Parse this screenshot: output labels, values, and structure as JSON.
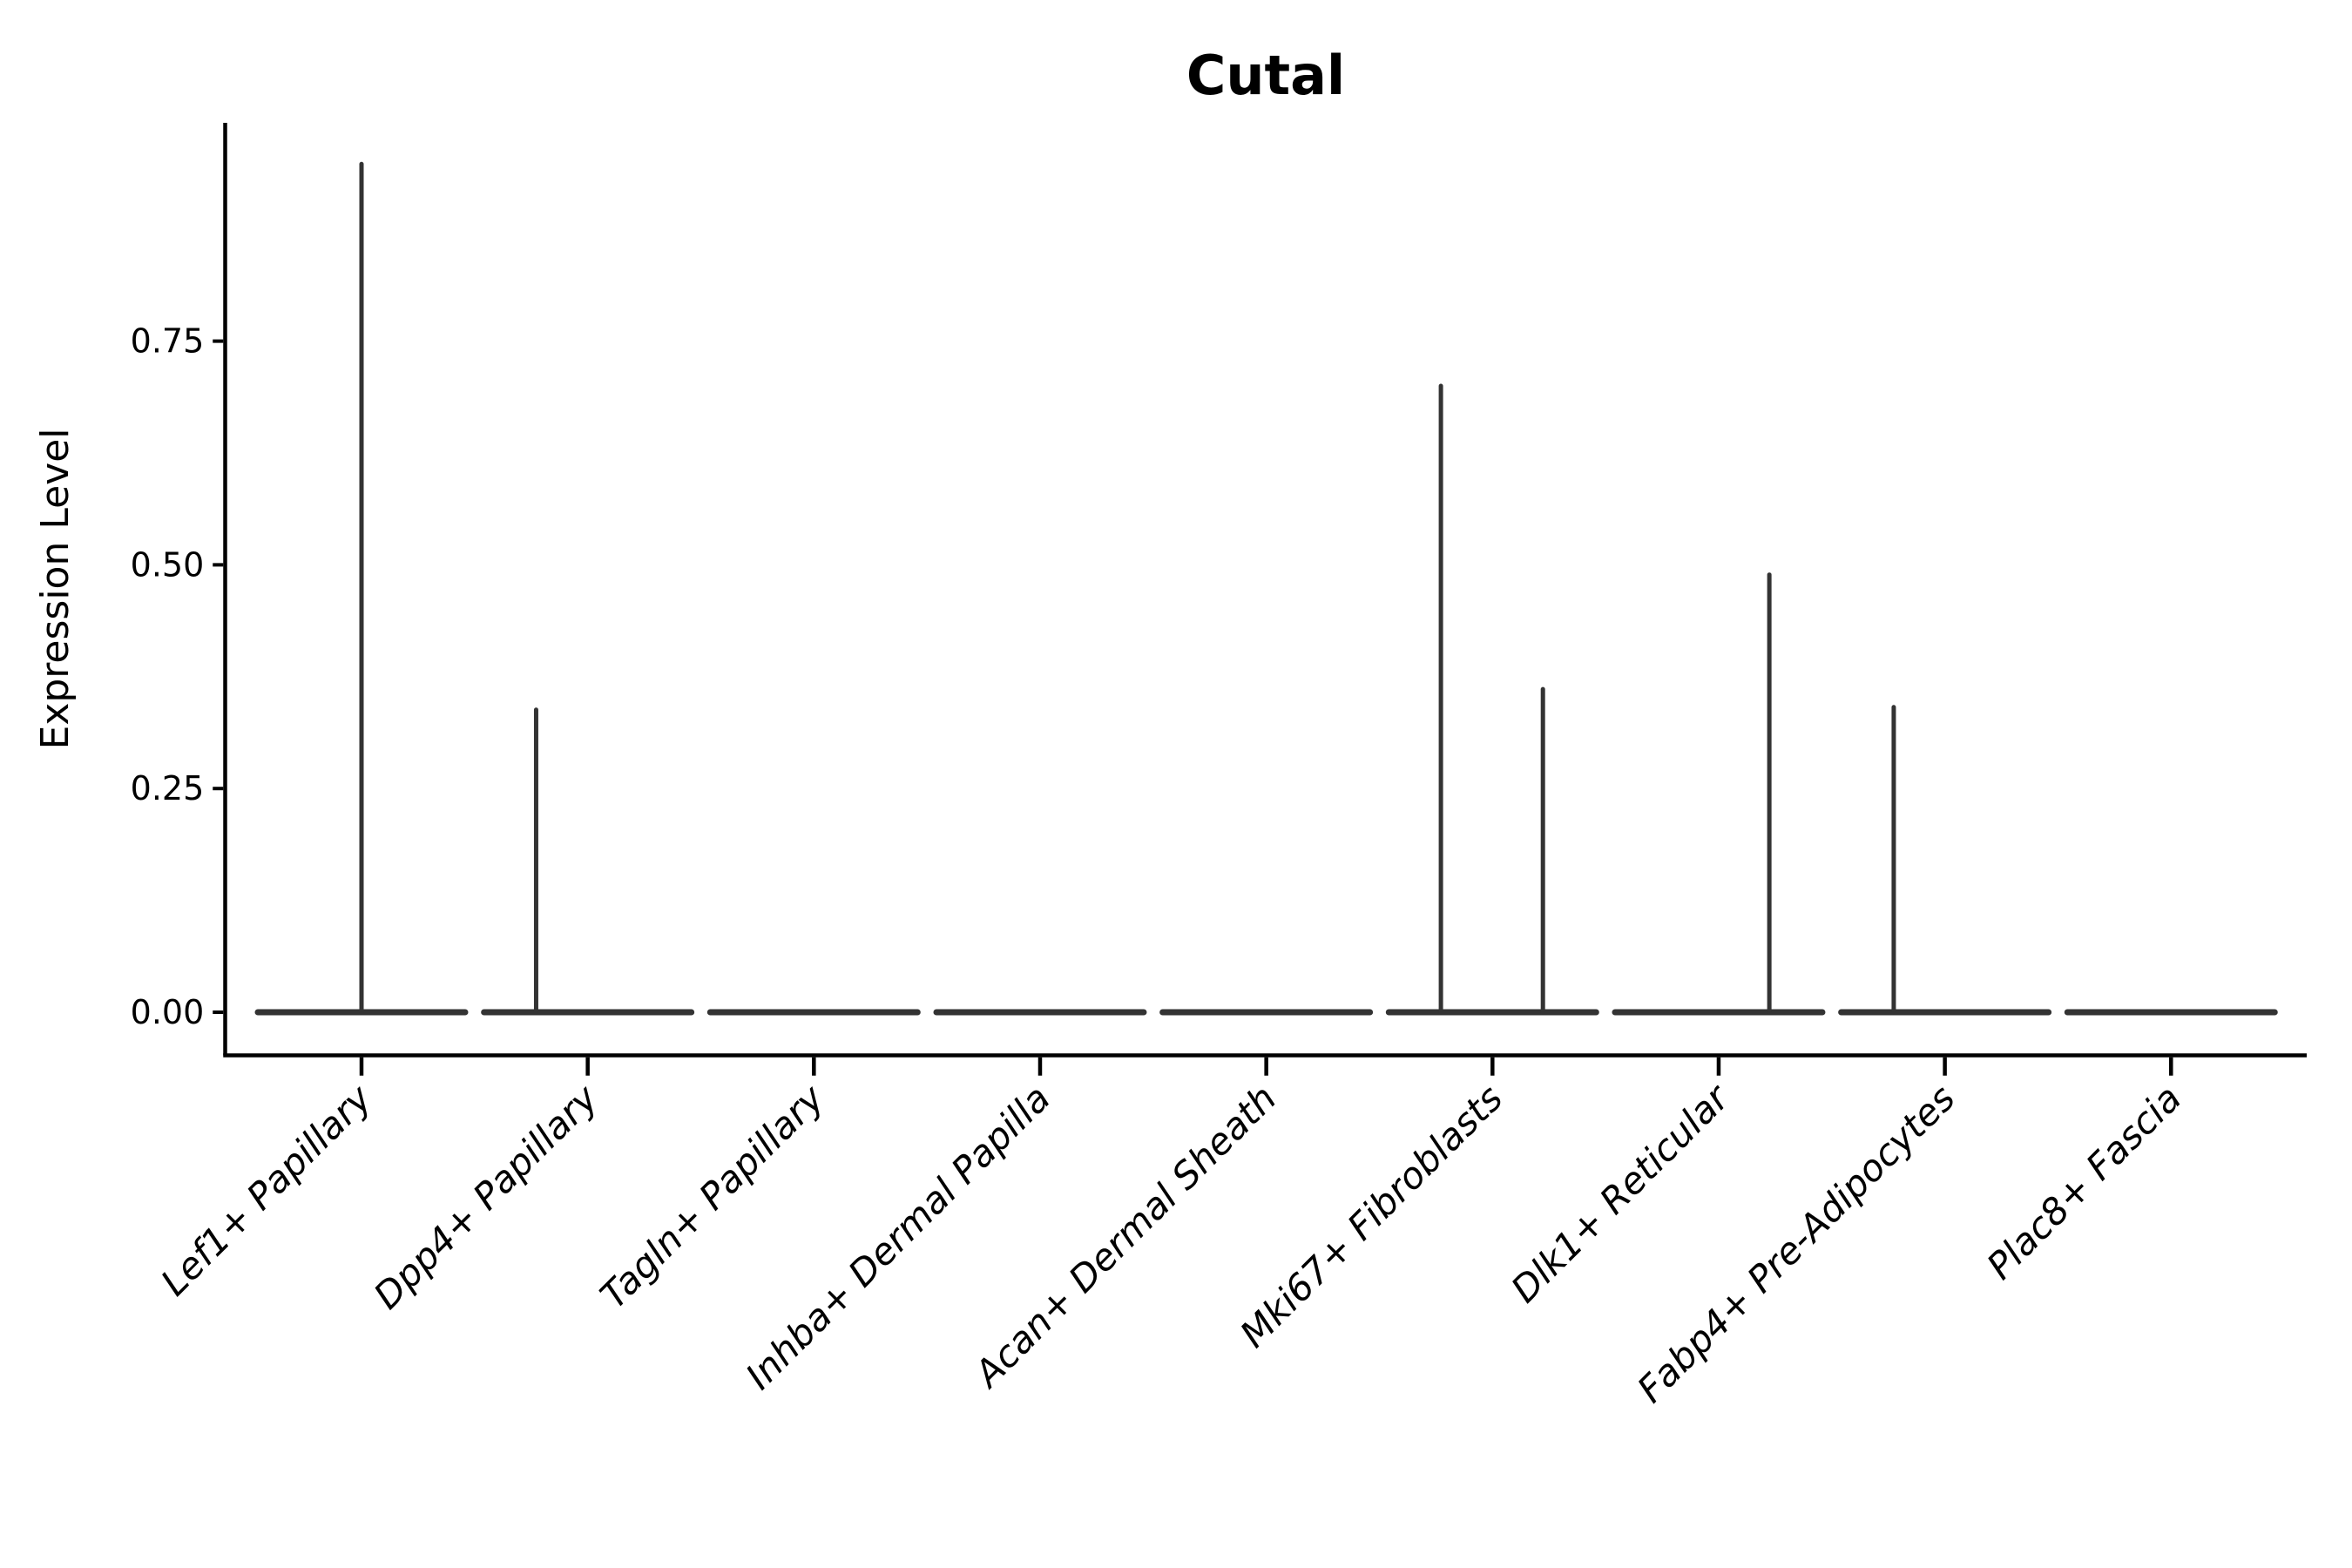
{
  "figure": {
    "background_color": "#ffffff"
  },
  "chart_data": {
    "type": "violin",
    "title": "Cutal",
    "ylabel": "Expression Level",
    "xlabel": "",
    "legend": "none",
    "grid": false,
    "ylim": [
      -0.047,
      0.994
    ],
    "y_ticks": [
      0.0,
      0.25,
      0.5,
      0.75
    ],
    "y_tick_labels": [
      "0.00",
      "0.25",
      "0.50",
      "0.75"
    ],
    "categories": [
      "Lef1+ Papillary",
      "Dpp4+ Papillary",
      "Tagln+ Papillary",
      "Inhba+ Dermal Papilla",
      "Acan+ Dermal Sheath",
      "Mki67+ Fibroblasts",
      "Dlk1+ Reticular",
      "Fabp4+ Pre-Adipocytes",
      "Plac8+ Fascia"
    ],
    "violins": [
      {
        "category": "Lef1+ Papillary",
        "base_value": 0,
        "spikes": [
          {
            "offset_frac": 0.0,
            "max": 0.948
          }
        ]
      },
      {
        "category": "Dpp4+ Papillary",
        "base_value": 0,
        "spikes": [
          {
            "offset_frac": -0.228,
            "max": 0.338
          }
        ]
      },
      {
        "category": "Tagln+ Papillary",
        "base_value": 0,
        "spikes": []
      },
      {
        "category": "Inhba+ Dermal Papilla",
        "base_value": 0,
        "spikes": []
      },
      {
        "category": "Acan+ Dermal Sheath",
        "base_value": 0,
        "spikes": []
      },
      {
        "category": "Mki67+ Fibroblasts",
        "base_value": 0,
        "spikes": [
          {
            "offset_frac": -0.228,
            "max": 0.7
          },
          {
            "offset_frac": 0.223,
            "max": 0.361
          }
        ]
      },
      {
        "category": "Dlk1+ Reticular",
        "base_value": 0,
        "spikes": [
          {
            "offset_frac": 0.224,
            "max": 0.489
          }
        ]
      },
      {
        "category": "Fabp4+ Pre-Adipocytes",
        "base_value": 0,
        "spikes": [
          {
            "offset_frac": -0.226,
            "max": 0.341
          }
        ]
      },
      {
        "category": "Plac8+ Fascia",
        "base_value": 0,
        "spikes": []
      }
    ],
    "colors": {
      "violin_line": "#333333",
      "axis": "#000000",
      "text": "#000000",
      "background": "#ffffff"
    }
  }
}
